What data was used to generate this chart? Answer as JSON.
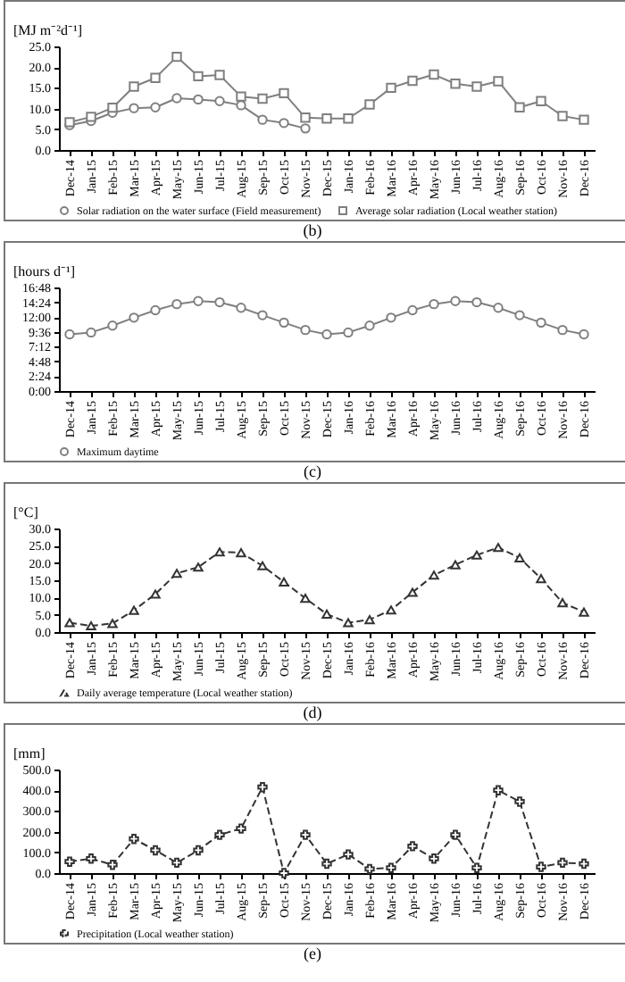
{
  "chart_data": [
    {
      "type": "line",
      "title": "(b)",
      "ylabel": "[MJ m⁻²d⁻¹]",
      "categories": [
        "Dec-14",
        "Jan-15",
        "Feb-15",
        "Mar-15",
        "Apr-15",
        "May-15",
        "Jun-15",
        "Jul-15",
        "Aug-15",
        "Sep-15",
        "Oct-15",
        "Nov-15",
        "Dec-15",
        "Jan-16",
        "Feb-16",
        "Mar-16",
        "Apr-16",
        "May-16",
        "Jun-16",
        "Jul-16",
        "Aug-16",
        "Sep-16",
        "Oct-16",
        "Nov-16",
        "Dec-16"
      ],
      "series": [
        {
          "name": "Solar radiation on the water surface (Field measurement)",
          "color": "#7f7f7f",
          "marker": "circle",
          "values": [
            6.0,
            7.0,
            9.0,
            10.1,
            10.3,
            12.5,
            12.2,
            11.8,
            10.8,
            7.3,
            6.5,
            5.2,
            null,
            null,
            null,
            null,
            null,
            null,
            null,
            null,
            null,
            null,
            null,
            null,
            null
          ]
        },
        {
          "name": "Average solar radiation (Local weather station)",
          "color": "#7f7f7f",
          "marker": "square",
          "values": [
            6.7,
            8.0,
            10.2,
            15.3,
            17.4,
            22.5,
            17.8,
            18.1,
            12.9,
            12.4,
            13.7,
            7.8,
            7.6,
            7.6,
            11.0,
            15.0,
            16.7,
            18.2,
            16.0,
            15.3,
            16.6,
            10.3,
            11.8,
            8.2,
            7.3
          ]
        }
      ],
      "ylim": [
        0,
        25
      ],
      "yticks": [
        {
          "value": 0,
          "label": "0.0"
        },
        {
          "value": 5,
          "label": "5.0"
        },
        {
          "value": 10,
          "label": "10.0"
        },
        {
          "value": 15,
          "label": "15.0"
        },
        {
          "value": 20,
          "label": "20.0"
        },
        {
          "value": 25,
          "label": "25.0"
        }
      ],
      "grid": false,
      "legend": "bottom",
      "line_style": "solid"
    },
    {
      "type": "line",
      "title": "(c)",
      "ylabel": "[hours d⁻¹]",
      "categories": [
        "Dec-14",
        "Jan-15",
        "Feb-15",
        "Mar-15",
        "Apr-15",
        "May-15",
        "Jun-15",
        "Jul-15",
        "Aug-15",
        "Sep-15",
        "Oct-15",
        "Nov-15",
        "Dec-15",
        "Jan-16",
        "Feb-16",
        "Mar-16",
        "Apr-16",
        "May-16",
        "Jun-16",
        "Jul-16",
        "Aug-16",
        "Sep-16",
        "Oct-16",
        "Nov-16",
        "Dec-16"
      ],
      "series": [
        {
          "name": "Maximum daytime",
          "color": "#7f7f7f",
          "marker": "circle",
          "values": [
            9.2,
            9.5,
            10.6,
            11.9,
            13.1,
            14.1,
            14.6,
            14.4,
            13.5,
            12.3,
            11.1,
            9.9,
            9.2,
            9.5,
            10.6,
            11.9,
            13.1,
            14.1,
            14.6,
            14.4,
            13.5,
            12.3,
            11.1,
            9.9,
            9.2
          ]
        }
      ],
      "ylim": [
        0,
        16.8
      ],
      "yticks": [
        {
          "value": 0,
          "label": "0:00"
        },
        {
          "value": 2.4,
          "label": "2:24"
        },
        {
          "value": 4.8,
          "label": "4:48"
        },
        {
          "value": 7.2,
          "label": "7:12"
        },
        {
          "value": 9.6,
          "label": "9:36"
        },
        {
          "value": 12,
          "label": "12:00"
        },
        {
          "value": 14.4,
          "label": "14:24"
        },
        {
          "value": 16.8,
          "label": "16:48"
        }
      ],
      "grid": false,
      "legend": "bottom",
      "line_style": "solid"
    },
    {
      "type": "line",
      "title": "(d)",
      "ylabel": "[°C]",
      "categories": [
        "Dec-14",
        "Jan-15",
        "Feb-15",
        "Mar-15",
        "Apr-15",
        "May-15",
        "Jun-15",
        "Jul-15",
        "Aug-15",
        "Sep-15",
        "Oct-15",
        "Nov-15",
        "Dec-15",
        "Jan-16",
        "Feb-16",
        "Mar-16",
        "Apr-16",
        "May-16",
        "Jun-16",
        "Jul-16",
        "Aug-16",
        "Sep-16",
        "Oct-16",
        "Nov-16",
        "Dec-16"
      ],
      "series": [
        {
          "name": "Daily average temperature (Local weather station)",
          "color": "#333333",
          "marker": "triangle",
          "values": [
            2.7,
            1.8,
            2.5,
            6.3,
            11.0,
            17.0,
            18.8,
            23.2,
            23.0,
            19.2,
            14.5,
            9.8,
            5.2,
            2.7,
            3.6,
            6.4,
            11.5,
            16.5,
            19.5,
            22.3,
            24.5,
            21.5,
            15.5,
            8.5,
            5.8
          ]
        }
      ],
      "ylim": [
        0,
        30
      ],
      "yticks": [
        {
          "value": 0,
          "label": "0.0"
        },
        {
          "value": 5,
          "label": "5.0"
        },
        {
          "value": 10,
          "label": "10.0"
        },
        {
          "value": 15,
          "label": "15.0"
        },
        {
          "value": 20,
          "label": "20.0"
        },
        {
          "value": 25,
          "label": "25.0"
        },
        {
          "value": 30,
          "label": "30.0"
        }
      ],
      "grid": false,
      "legend": "bottom",
      "line_style": "dashed"
    },
    {
      "type": "line",
      "title": "(e)",
      "ylabel": "[mm]",
      "categories": [
        "Dec-14",
        "Jan-15",
        "Feb-15",
        "Mar-15",
        "Apr-15",
        "May-15",
        "Jun-15",
        "Jul-15",
        "Aug-15",
        "Sep-15",
        "Oct-15",
        "Nov-15",
        "Dec-15",
        "Jan-16",
        "Feb-16",
        "Mar-16",
        "Apr-16",
        "May-16",
        "Jun-16",
        "Jul-16",
        "Aug-16",
        "Sep-16",
        "Oct-16",
        "Nov-16",
        "Dec-16"
      ],
      "series": [
        {
          "name": "Precipitation (Local weather station)",
          "color": "#333333",
          "marker": "cross",
          "values": [
            55,
            70,
            40,
            165,
            110,
            50,
            110,
            185,
            215,
            415,
            0,
            185,
            45,
            90,
            20,
            25,
            130,
            70,
            185,
            25,
            400,
            345,
            30,
            50,
            45
          ]
        }
      ],
      "ylim": [
        0,
        500
      ],
      "yticks": [
        {
          "value": 0,
          "label": "0.0"
        },
        {
          "value": 100,
          "label": "100.0"
        },
        {
          "value": 200,
          "label": "200.0"
        },
        {
          "value": 300,
          "label": "300.0"
        },
        {
          "value": 400,
          "label": "400.0"
        },
        {
          "value": 500,
          "label": "500.0"
        }
      ],
      "grid": false,
      "legend": "bottom",
      "line_style": "dashed"
    }
  ]
}
